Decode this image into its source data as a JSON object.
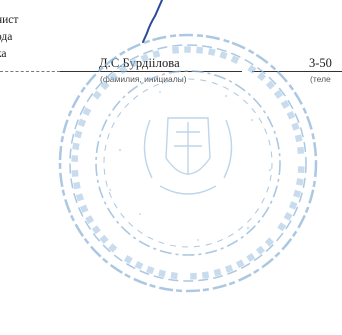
{
  "left_fragment": {
    "line1": "нист",
    "line2": "ода",
    "line3": "ка"
  },
  "signatory": {
    "name": "Д.С.Бурдіілова",
    "name_caption": "(фамилия, инициалы)",
    "phone_fragment": "3-50",
    "phone_caption": "(теле"
  },
  "colors": {
    "seal": "#8fb5d8",
    "signature": "#2a4a9a"
  }
}
